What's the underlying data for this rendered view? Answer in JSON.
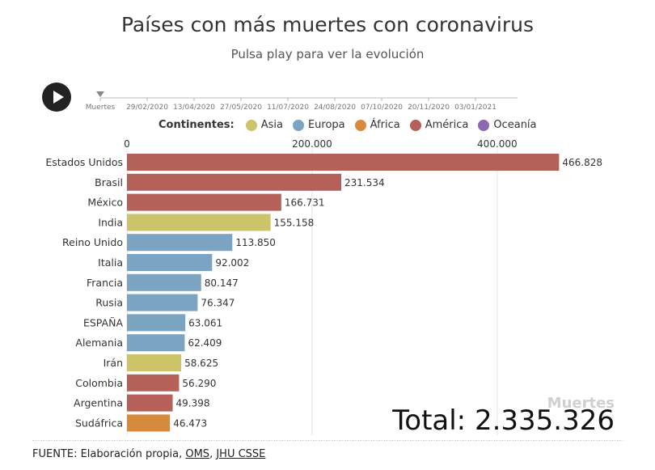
{
  "header": {
    "title": "Países con más muertes con coronavirus",
    "subtitle": "Pulsa play para ver la evolución"
  },
  "timeline": {
    "labels": [
      "Muertes",
      "29/02/2020",
      "13/04/2020",
      "27/05/2020",
      "11/07/2020",
      "24/08/2020",
      "07/10/2020",
      "20/11/2020",
      "03/01/2021"
    ]
  },
  "legend": {
    "title": "Continentes:",
    "items": [
      {
        "label": "Asia",
        "color": "#cdc36a"
      },
      {
        "label": "Europa",
        "color": "#7ba3c2"
      },
      {
        "label": "África",
        "color": "#d88a3c"
      },
      {
        "label": "América",
        "color": "#b5615a"
      },
      {
        "label": "Oceanía",
        "color": "#8d6aaf"
      }
    ]
  },
  "chart_data": {
    "type": "bar",
    "orientation": "horizontal",
    "title": "Países con más muertes con coronavirus",
    "subtitle": "Pulsa play para ver la evolución",
    "categories": [
      "Estados Unidos",
      "Brasil",
      "México",
      "India",
      "Reino Unido",
      "Italia",
      "Francia",
      "Rusia",
      "ESPAÑA",
      "Alemania",
      "Irán",
      "Colombia",
      "Argentina",
      "Sudáfrica"
    ],
    "values": [
      466828,
      231534,
      166731,
      155158,
      113850,
      92002,
      80147,
      76347,
      63061,
      62409,
      58625,
      56290,
      49398,
      46473
    ],
    "value_labels": [
      "466.828",
      "231.534",
      "166.731",
      "155.158",
      "113.850",
      "92.002",
      "80.147",
      "76.347",
      "63.061",
      "62.409",
      "58.625",
      "56.290",
      "49.398",
      "46.473"
    ],
    "continents": [
      "América",
      "América",
      "América",
      "Asia",
      "Europa",
      "Europa",
      "Europa",
      "Europa",
      "Europa",
      "Europa",
      "Asia",
      "América",
      "America",
      "África"
    ],
    "xlim": [
      0,
      470000
    ],
    "ticks": [
      0,
      200000,
      400000
    ],
    "tick_labels": [
      "0",
      "200.000",
      "400.000"
    ],
    "grid": true,
    "legend_position": "top"
  },
  "total": {
    "label": "Muertes",
    "text": "Total: 2.335.326"
  },
  "source": {
    "prefix": "FUENTE: Elaboración propia, ",
    "link1": "OMS",
    "separator": ", ",
    "link2": "JHU CSSE"
  }
}
